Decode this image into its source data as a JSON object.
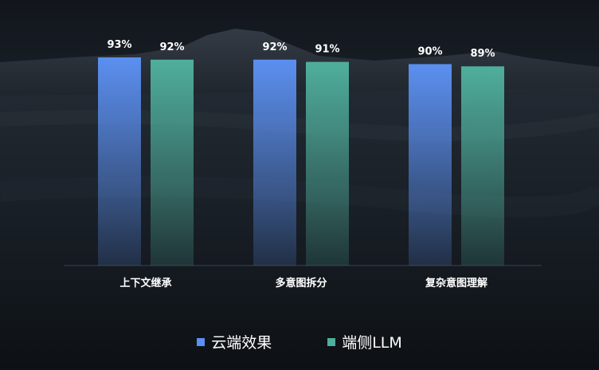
{
  "chart_data": {
    "type": "bar",
    "categories": [
      "上下文继承",
      "多意图拆分",
      "复杂意图理解"
    ],
    "series": [
      {
        "name": "云端效果",
        "values": [
          93,
          92,
          90
        ],
        "labels": [
          "93%",
          "92%",
          "90%"
        ],
        "color": "#5b8ff0"
      },
      {
        "name": "端侧LLM",
        "values": [
          92,
          91,
          89
        ],
        "labels": [
          "92%",
          "91%",
          "89%"
        ],
        "color": "#4fae9c"
      }
    ],
    "ylim": [
      0,
      100
    ],
    "grid": false,
    "legend": "bottom-center"
  }
}
